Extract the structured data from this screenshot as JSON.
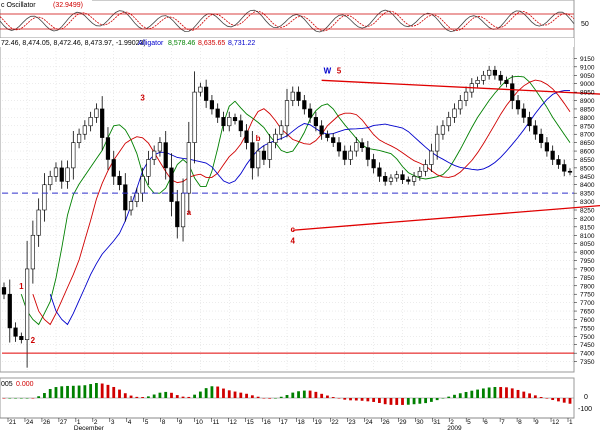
{
  "osc_panel": {
    "title": "c Oscillator",
    "value": "(32.9499)",
    "ticks": [
      "50"
    ]
  },
  "price_panel": {
    "ohlc": "72.46, 8,474.05, 8,472.46, 8,473.97, -1.99023)",
    "indicator_name": "Alligator",
    "indicator_values": [
      "8,578.46",
      "8,635.65",
      "8,731.22"
    ],
    "indicator_colors": [
      "#008000",
      "#d00000",
      "#0000cc"
    ]
  },
  "ao_panel": {
    "title": "005",
    "value": "0.000",
    "ticks": [
      "0",
      "-100"
    ]
  },
  "x_axis": {
    "labels": [
      "21",
      "24",
      "26",
      "27",
      "1",
      "2",
      "3",
      "4",
      "5",
      "8",
      "9",
      "10",
      "11",
      "12",
      "15",
      "16",
      "17",
      "18",
      "19",
      "22",
      "23",
      "24",
      "26",
      "29",
      "30",
      "31",
      "2",
      "5",
      "6",
      "7",
      "8",
      "9",
      "12",
      "1"
    ],
    "months": [
      "December",
      "2009"
    ]
  },
  "chart_data": {
    "type": "candlestick",
    "ylim": [
      7300,
      9200
    ],
    "yticks": [
      7350,
      7400,
      7450,
      7500,
      7550,
      7600,
      7650,
      7700,
      7750,
      7800,
      7850,
      7900,
      7950,
      8000,
      8050,
      8100,
      8150,
      8200,
      8250,
      8300,
      8350,
      8400,
      8450,
      8500,
      8550,
      8600,
      8650,
      8700,
      8750,
      8800,
      8850,
      8900,
      8950,
      9000,
      9050,
      9100,
      9150
    ],
    "closes": [
      7750,
      7550,
      7500,
      7480,
      7900,
      8100,
      8250,
      8400,
      8450,
      8500,
      8420,
      8500,
      8650,
      8700,
      8750,
      8800,
      8850,
      8680,
      8550,
      8450,
      8400,
      8250,
      8300,
      8350,
      8450,
      8550,
      8600,
      8650,
      8500,
      8300,
      8150,
      8350,
      8650,
      8950,
      8980,
      8900,
      8850,
      8800,
      8750,
      8800,
      8780,
      8720,
      8650,
      8500,
      8600,
      8550,
      8650,
      8700,
      8750,
      8900,
      8950,
      8900,
      8850,
      8800,
      8750,
      8700,
      8680,
      8650,
      8600,
      8550,
      8600,
      8650,
      8620,
      8550,
      8500,
      8450,
      8420,
      8440,
      8460,
      8430,
      8420,
      8450,
      8480,
      8520,
      8600,
      8700,
      8750,
      8800,
      8850,
      8900,
      8950,
      9000,
      9020,
      9050,
      9080,
      9050,
      9020,
      9000,
      8900,
      8850,
      8800,
      8750,
      8700,
      8650,
      8600,
      8550,
      8520,
      8480,
      8474
    ],
    "annotations": [
      {
        "text": "W",
        "x": 56,
        "y": 9060,
        "color": "#0000cc"
      },
      {
        "text": "5",
        "x": 58,
        "y": 9060,
        "color": "#cc0000"
      },
      {
        "text": "3",
        "x": 24,
        "y": 8900,
        "color": "#cc0000"
      },
      {
        "text": "b",
        "x": 44,
        "y": 8660,
        "color": "#cc0000"
      },
      {
        "text": "a",
        "x": 32,
        "y": 8220,
        "color": "#cc0000"
      },
      {
        "text": "c",
        "x": 50,
        "y": 8120,
        "color": "#cc0000"
      },
      {
        "text": "4",
        "x": 50,
        "y": 8050,
        "color": "#cc0000"
      },
      {
        "text": "1",
        "x": 3,
        "y": 7780,
        "color": "#cc0000"
      },
      {
        "text": "2",
        "x": 5,
        "y": 7460,
        "color": "#cc0000"
      },
      {
        "text": "X",
        "x": 130,
        "y": 8330,
        "color": "#0000cc"
      }
    ],
    "trendlines": [
      {
        "x1": 55,
        "y1": 9020,
        "x2": 185,
        "y2": 8800,
        "color": "#e00000"
      },
      {
        "x1": 50,
        "y1": 8130,
        "x2": 185,
        "y2": 8500,
        "color": "#e00000"
      }
    ],
    "hlines": [
      {
        "y": 8350,
        "color": "#3030cc",
        "dash": true
      },
      {
        "y": 7400,
        "color": "#e00000",
        "dash": false
      }
    ]
  }
}
